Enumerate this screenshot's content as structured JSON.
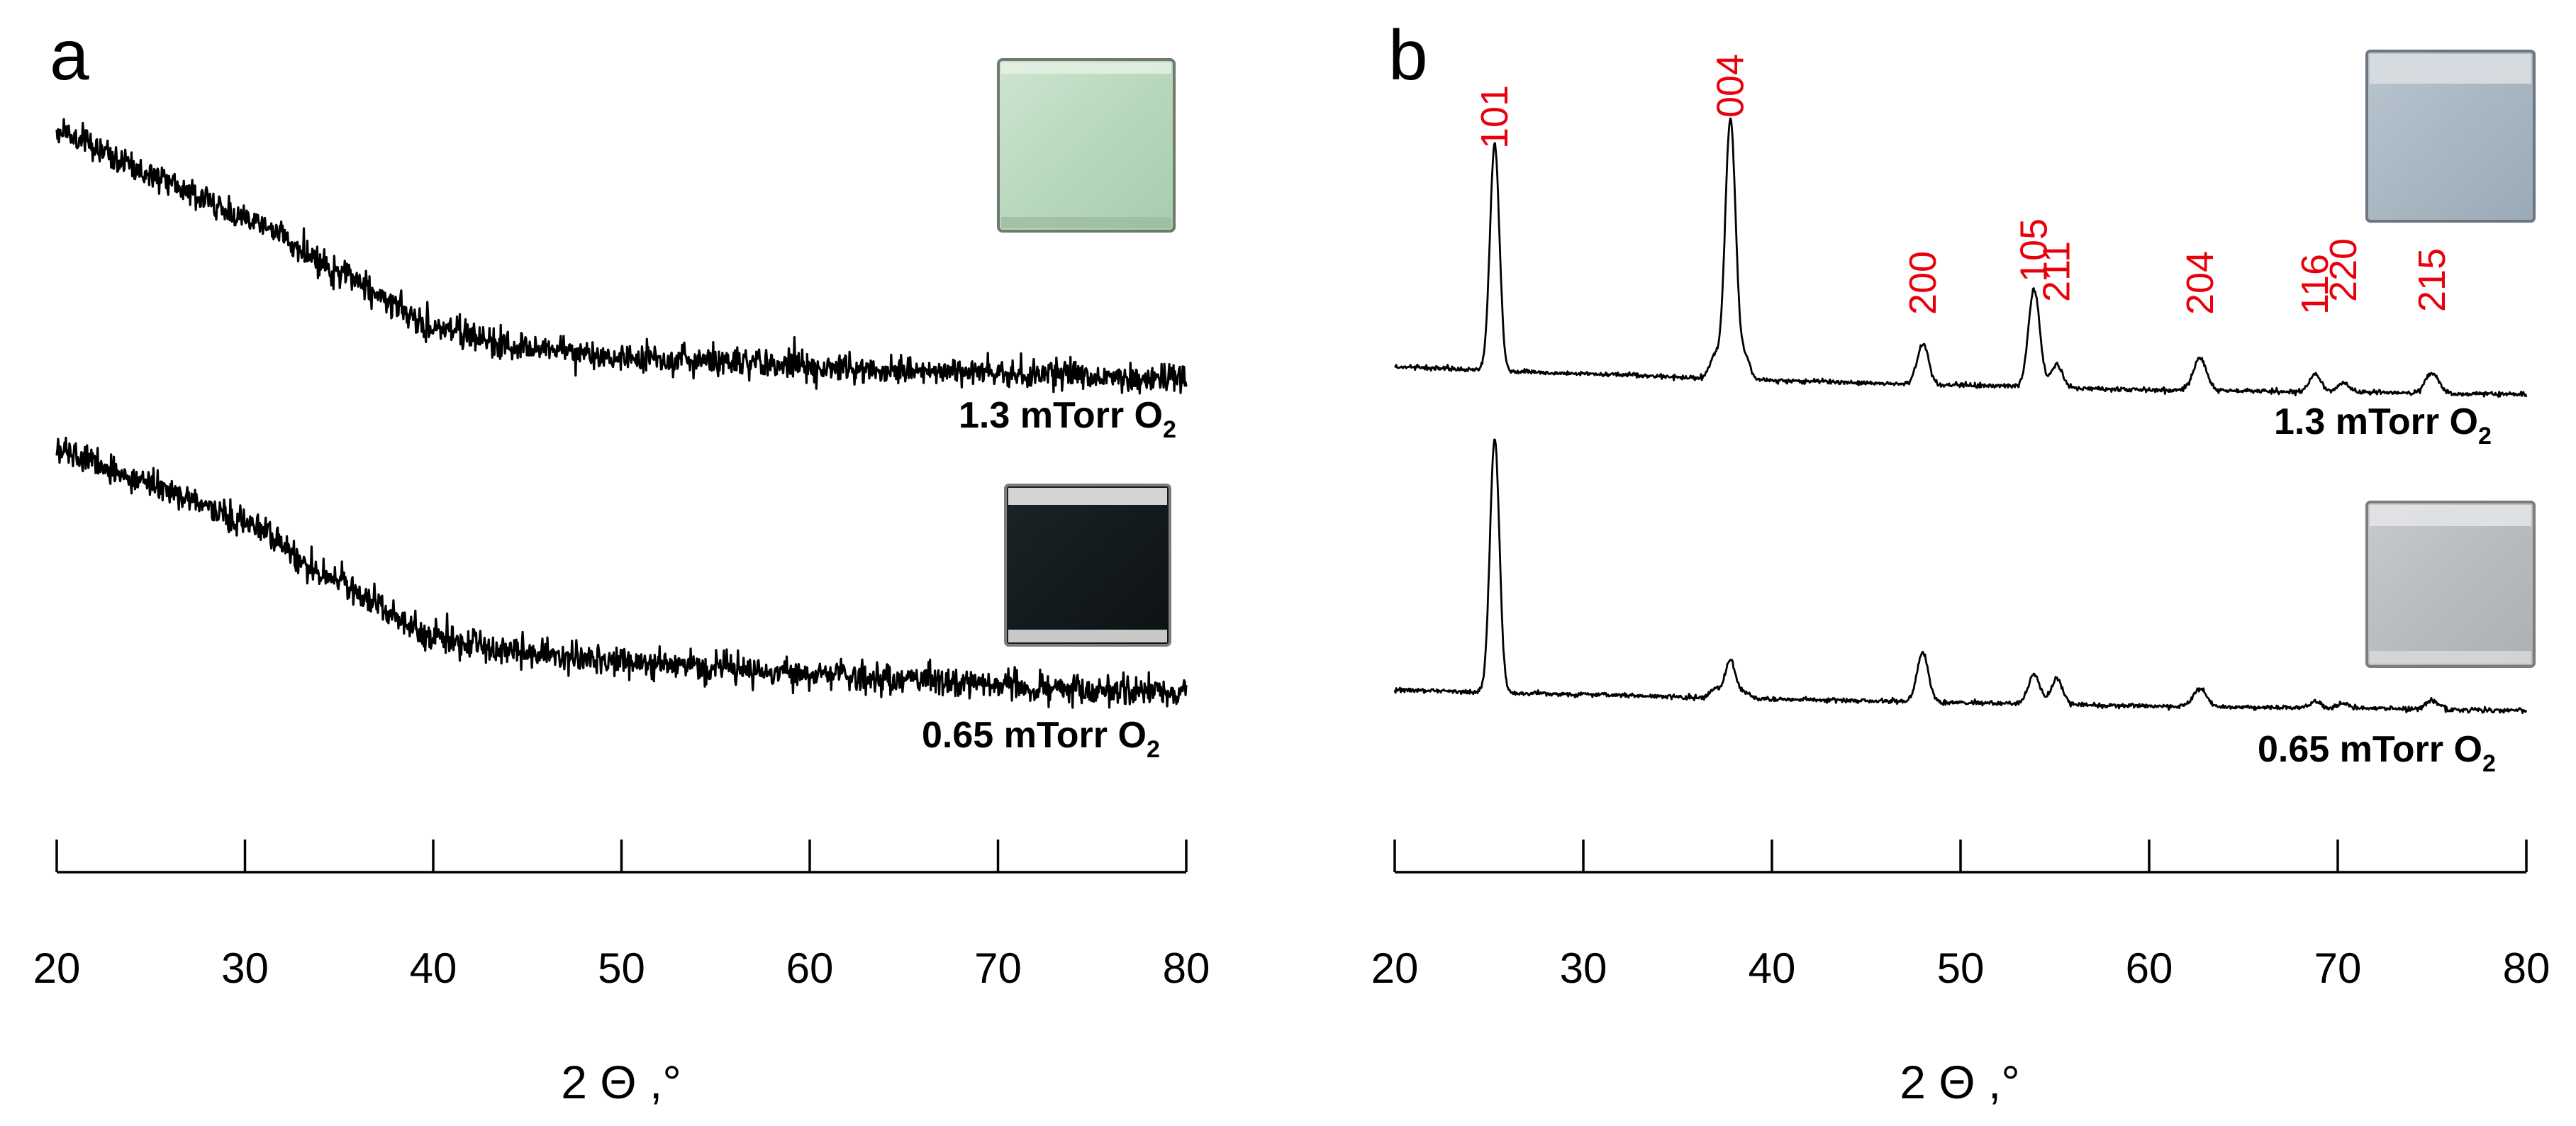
{
  "colors": {
    "trace": "#000000",
    "peak_label": "#e8000b",
    "sample_green": "#b8d8bc",
    "sample_dark": "#10161a",
    "sample_bluegray": "#a9b7c2",
    "sample_gray": "#b9bcbf"
  },
  "chart_data": [
    {
      "type": "line",
      "panel_label": "a",
      "title": "",
      "xlabel": "2 Θ ,°",
      "ylabel": "",
      "xlim": [
        20,
        80
      ],
      "x_ticks": [
        20,
        30,
        40,
        50,
        60,
        70,
        80
      ],
      "x_tick_labels": [
        "20",
        "30",
        "40",
        "50",
        "60",
        "70",
        "80"
      ],
      "y_ticks_shown": false,
      "grid": false,
      "noise": "high",
      "series": [
        {
          "name": "1.3 mTorr O2",
          "label": "1.3 mTorr O",
          "label_sub": "2",
          "baseline": [
            [
              20,
              1.0
            ],
            [
              25,
              0.83
            ],
            [
              30,
              0.65
            ],
            [
              35,
              0.43
            ],
            [
              40,
              0.2
            ],
            [
              45,
              0.12
            ],
            [
              50,
              0.085
            ],
            [
              55,
              0.06
            ],
            [
              60,
              0.045
            ],
            [
              65,
              0.03
            ],
            [
              70,
              0.015
            ],
            [
              75,
              0.005
            ],
            [
              80,
              0.0
            ]
          ],
          "peaks": [],
          "sample_color": "green"
        },
        {
          "name": "0.65 mTorr O2",
          "label": "0.65 mTorr O",
          "label_sub": "2",
          "baseline": [
            [
              20,
              1.0
            ],
            [
              25,
              0.86
            ],
            [
              30,
              0.7
            ],
            [
              35,
              0.45
            ],
            [
              40,
              0.22
            ],
            [
              45,
              0.16
            ],
            [
              50,
              0.13
            ],
            [
              55,
              0.1
            ],
            [
              60,
              0.08
            ],
            [
              65,
              0.05
            ],
            [
              70,
              0.03
            ],
            [
              75,
              0.015
            ],
            [
              80,
              0.0
            ]
          ],
          "peaks": [],
          "sample_color": "dark"
        }
      ]
    },
    {
      "type": "line",
      "panel_label": "b",
      "title": "",
      "xlabel": "2 Θ ,°",
      "ylabel": "",
      "xlim": [
        20,
        80
      ],
      "x_ticks": [
        20,
        30,
        40,
        50,
        60,
        70,
        80
      ],
      "x_tick_labels": [
        "20",
        "30",
        "40",
        "50",
        "60",
        "70",
        "80"
      ],
      "y_ticks_shown": false,
      "grid": false,
      "noise": "low",
      "peak_annotations": [
        {
          "text": "101",
          "x": 25.3
        },
        {
          "text": "004",
          "x": 37.8
        },
        {
          "text": "200",
          "x": 48.0
        },
        {
          "text": "105",
          "x": 53.9
        },
        {
          "text": "211",
          "x": 55.1
        },
        {
          "text": "204",
          "x": 62.7
        },
        {
          "text": "116",
          "x": 68.8
        },
        {
          "text": "220",
          "x": 70.3
        },
        {
          "text": "215",
          "x": 75.0
        }
      ],
      "series": [
        {
          "name": "1.3 mTorr O2",
          "label": "1.3 mTorr O",
          "label_sub": "2",
          "baseline": [
            [
              20,
              0.12
            ],
            [
              30,
              0.09
            ],
            [
              40,
              0.06
            ],
            [
              50,
              0.04
            ],
            [
              60,
              0.02
            ],
            [
              70,
              0.01
            ],
            [
              80,
              0.0
            ]
          ],
          "peaks": [
            {
              "x": 25.3,
              "h": 1.0,
              "w": 0.25
            },
            {
              "x": 36.95,
              "h": 0.1,
              "w": 0.25
            },
            {
              "x": 37.8,
              "h": 1.15,
              "w": 0.28
            },
            {
              "x": 38.6,
              "h": 0.1,
              "w": 0.25
            },
            {
              "x": 48.0,
              "h": 0.18,
              "w": 0.3
            },
            {
              "x": 53.9,
              "h": 0.43,
              "w": 0.3
            },
            {
              "x": 55.1,
              "h": 0.1,
              "w": 0.3
            },
            {
              "x": 62.7,
              "h": 0.14,
              "w": 0.35
            },
            {
              "x": 68.8,
              "h": 0.08,
              "w": 0.3
            },
            {
              "x": 70.3,
              "h": 0.04,
              "w": 0.3
            },
            {
              "x": 75.0,
              "h": 0.09,
              "w": 0.35
            }
          ],
          "sample_color": "bluegray"
        },
        {
          "name": "0.65 mTorr O2",
          "label": "0.65 mTorr O",
          "label_sub": "2",
          "baseline": [
            [
              20,
              0.09
            ],
            [
              30,
              0.07
            ],
            [
              40,
              0.05
            ],
            [
              50,
              0.035
            ],
            [
              60,
              0.02
            ],
            [
              70,
              0.01
            ],
            [
              80,
              0.0
            ]
          ],
          "peaks": [
            {
              "x": 25.3,
              "h": 1.12,
              "w": 0.25
            },
            {
              "x": 36.95,
              "h": 0.04,
              "w": 0.25
            },
            {
              "x": 37.8,
              "h": 0.17,
              "w": 0.28
            },
            {
              "x": 38.6,
              "h": 0.03,
              "w": 0.25
            },
            {
              "x": 48.0,
              "h": 0.22,
              "w": 0.3
            },
            {
              "x": 53.9,
              "h": 0.13,
              "w": 0.3
            },
            {
              "x": 55.1,
              "h": 0.11,
              "w": 0.3
            },
            {
              "x": 62.7,
              "h": 0.08,
              "w": 0.35
            },
            {
              "x": 68.8,
              "h": 0.03,
              "w": 0.3
            },
            {
              "x": 70.3,
              "h": 0.02,
              "w": 0.3
            },
            {
              "x": 75.0,
              "h": 0.04,
              "w": 0.35
            }
          ],
          "sample_color": "gray"
        }
      ]
    }
  ]
}
